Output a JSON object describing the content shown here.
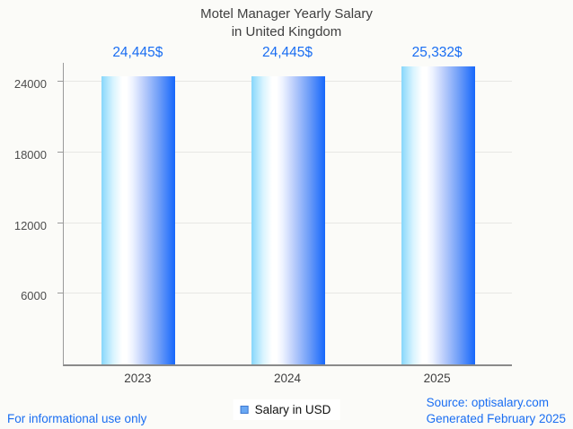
{
  "title": {
    "line1": "Motel Manager Yearly Salary",
    "line2": "in United Kingdom"
  },
  "chart_data": {
    "type": "bar",
    "categories": [
      "2023",
      "2024",
      "2025"
    ],
    "values": [
      24445,
      24445,
      25332
    ],
    "value_labels": [
      "24,445$",
      "24,445$",
      "25,332$"
    ],
    "series_name": "Salary in USD",
    "yticks": [
      6000,
      12000,
      18000,
      24000
    ],
    "ylim": [
      0,
      25750
    ],
    "grid": "horizontal-gridlines-on",
    "legend_position": "bottom-center",
    "bar_gradient": [
      "#87d7fb",
      "#ffffff",
      "#1667fb"
    ]
  },
  "legend": {
    "label": "Salary in USD"
  },
  "footer": {
    "left": "For informational use only",
    "source": "Source: optisalary.com",
    "generated": "Generated February 2025"
  },
  "colors": {
    "accent_blue": "#1a6ef2",
    "title_text": "#3f3f3f",
    "axis_text": "#4d4d4d",
    "gridline": "#e7e7e4",
    "background": "#fbfbf8",
    "legend_marker_fill": "#69a8f4",
    "legend_marker_border": "#3e78d2"
  }
}
